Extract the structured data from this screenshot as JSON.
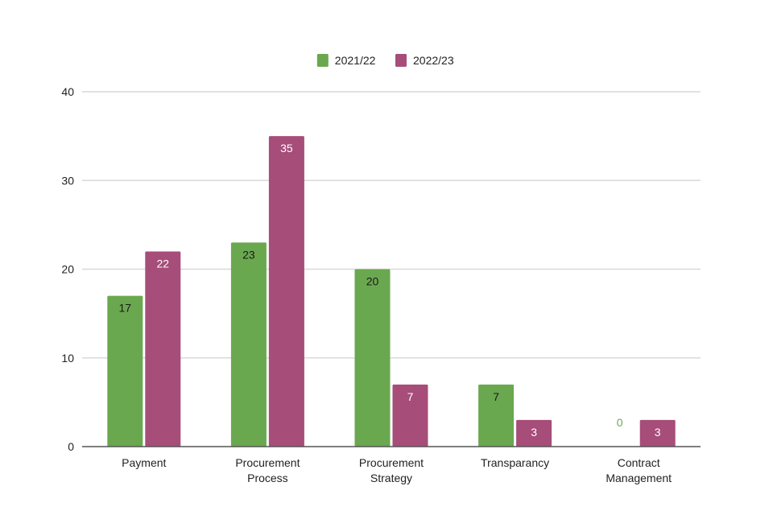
{
  "chart_data": {
    "type": "bar",
    "title": "",
    "xlabel": "",
    "ylabel": "",
    "categories": [
      [
        "Payment"
      ],
      [
        "Procurement",
        "Process"
      ],
      [
        "Procurement",
        "Strategy"
      ],
      [
        "Transparancy"
      ],
      [
        "Contract",
        "Management"
      ]
    ],
    "series": [
      {
        "name": "2021/22",
        "color": "#6aa84f",
        "label_color": "#1a1a1a",
        "zero_label_color": "#6aa84f",
        "values": [
          17,
          23,
          20,
          7,
          0
        ]
      },
      {
        "name": "2022/23",
        "color": "#a64d79",
        "label_color": "#ffffff",
        "zero_label_color": "#a64d79",
        "values": [
          22,
          35,
          7,
          3,
          3
        ]
      }
    ],
    "ylim": [
      0,
      40
    ],
    "yticks": [
      0,
      10,
      20,
      30,
      40
    ],
    "grid": true,
    "legend_position": "top-center"
  }
}
